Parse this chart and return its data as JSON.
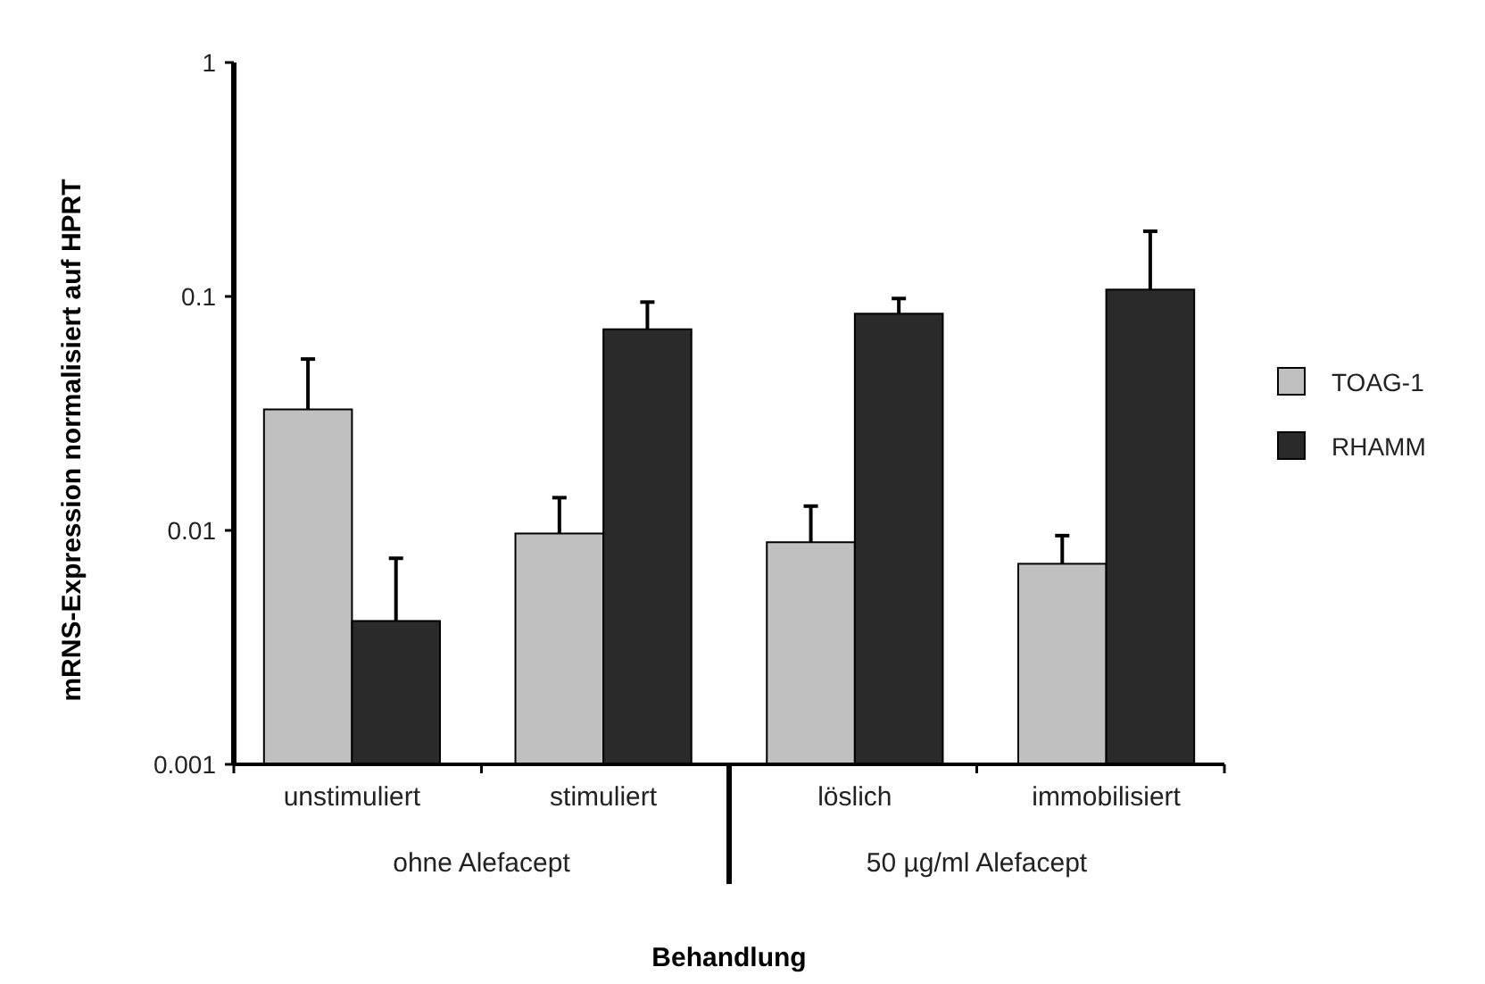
{
  "chart_data": {
    "type": "bar",
    "xlabel": "Behandlung",
    "ylabel": "mRNS-Expression normalisiert auf HPRT",
    "categories": [
      "unstimuliert",
      "stimuliert",
      "löslich",
      "immobilisiert"
    ],
    "series": [
      {
        "name": "TOAG-1",
        "color": "#c0c0c0",
        "values": [
          0.0329,
          0.0097,
          0.0089,
          0.0072
        ],
        "errors": [
          [
            0.0329,
            0.054
          ],
          [
            0.0097,
            0.0138
          ],
          [
            0.0089,
            0.0127
          ],
          [
            0.0072,
            0.0095
          ]
        ]
      },
      {
        "name": "RHAMM",
        "color": "#2a2a2a",
        "values": [
          0.0041,
          0.0724,
          0.0844,
          0.107
        ],
        "errors": [
          [
            0.0041,
            0.0076
          ],
          [
            0.0724,
            0.0946
          ],
          [
            0.0844,
            0.098
          ],
          [
            0.107,
            0.19
          ]
        ]
      }
    ],
    "annotations": [
      "ohne Alefacept",
      "50 µg/ml Alefacept"
    ],
    "log": "y",
    "ylim": [
      0.001,
      1
    ],
    "yticks": [
      0.001,
      0.01,
      0.1,
      1
    ],
    "legend": "right"
  }
}
